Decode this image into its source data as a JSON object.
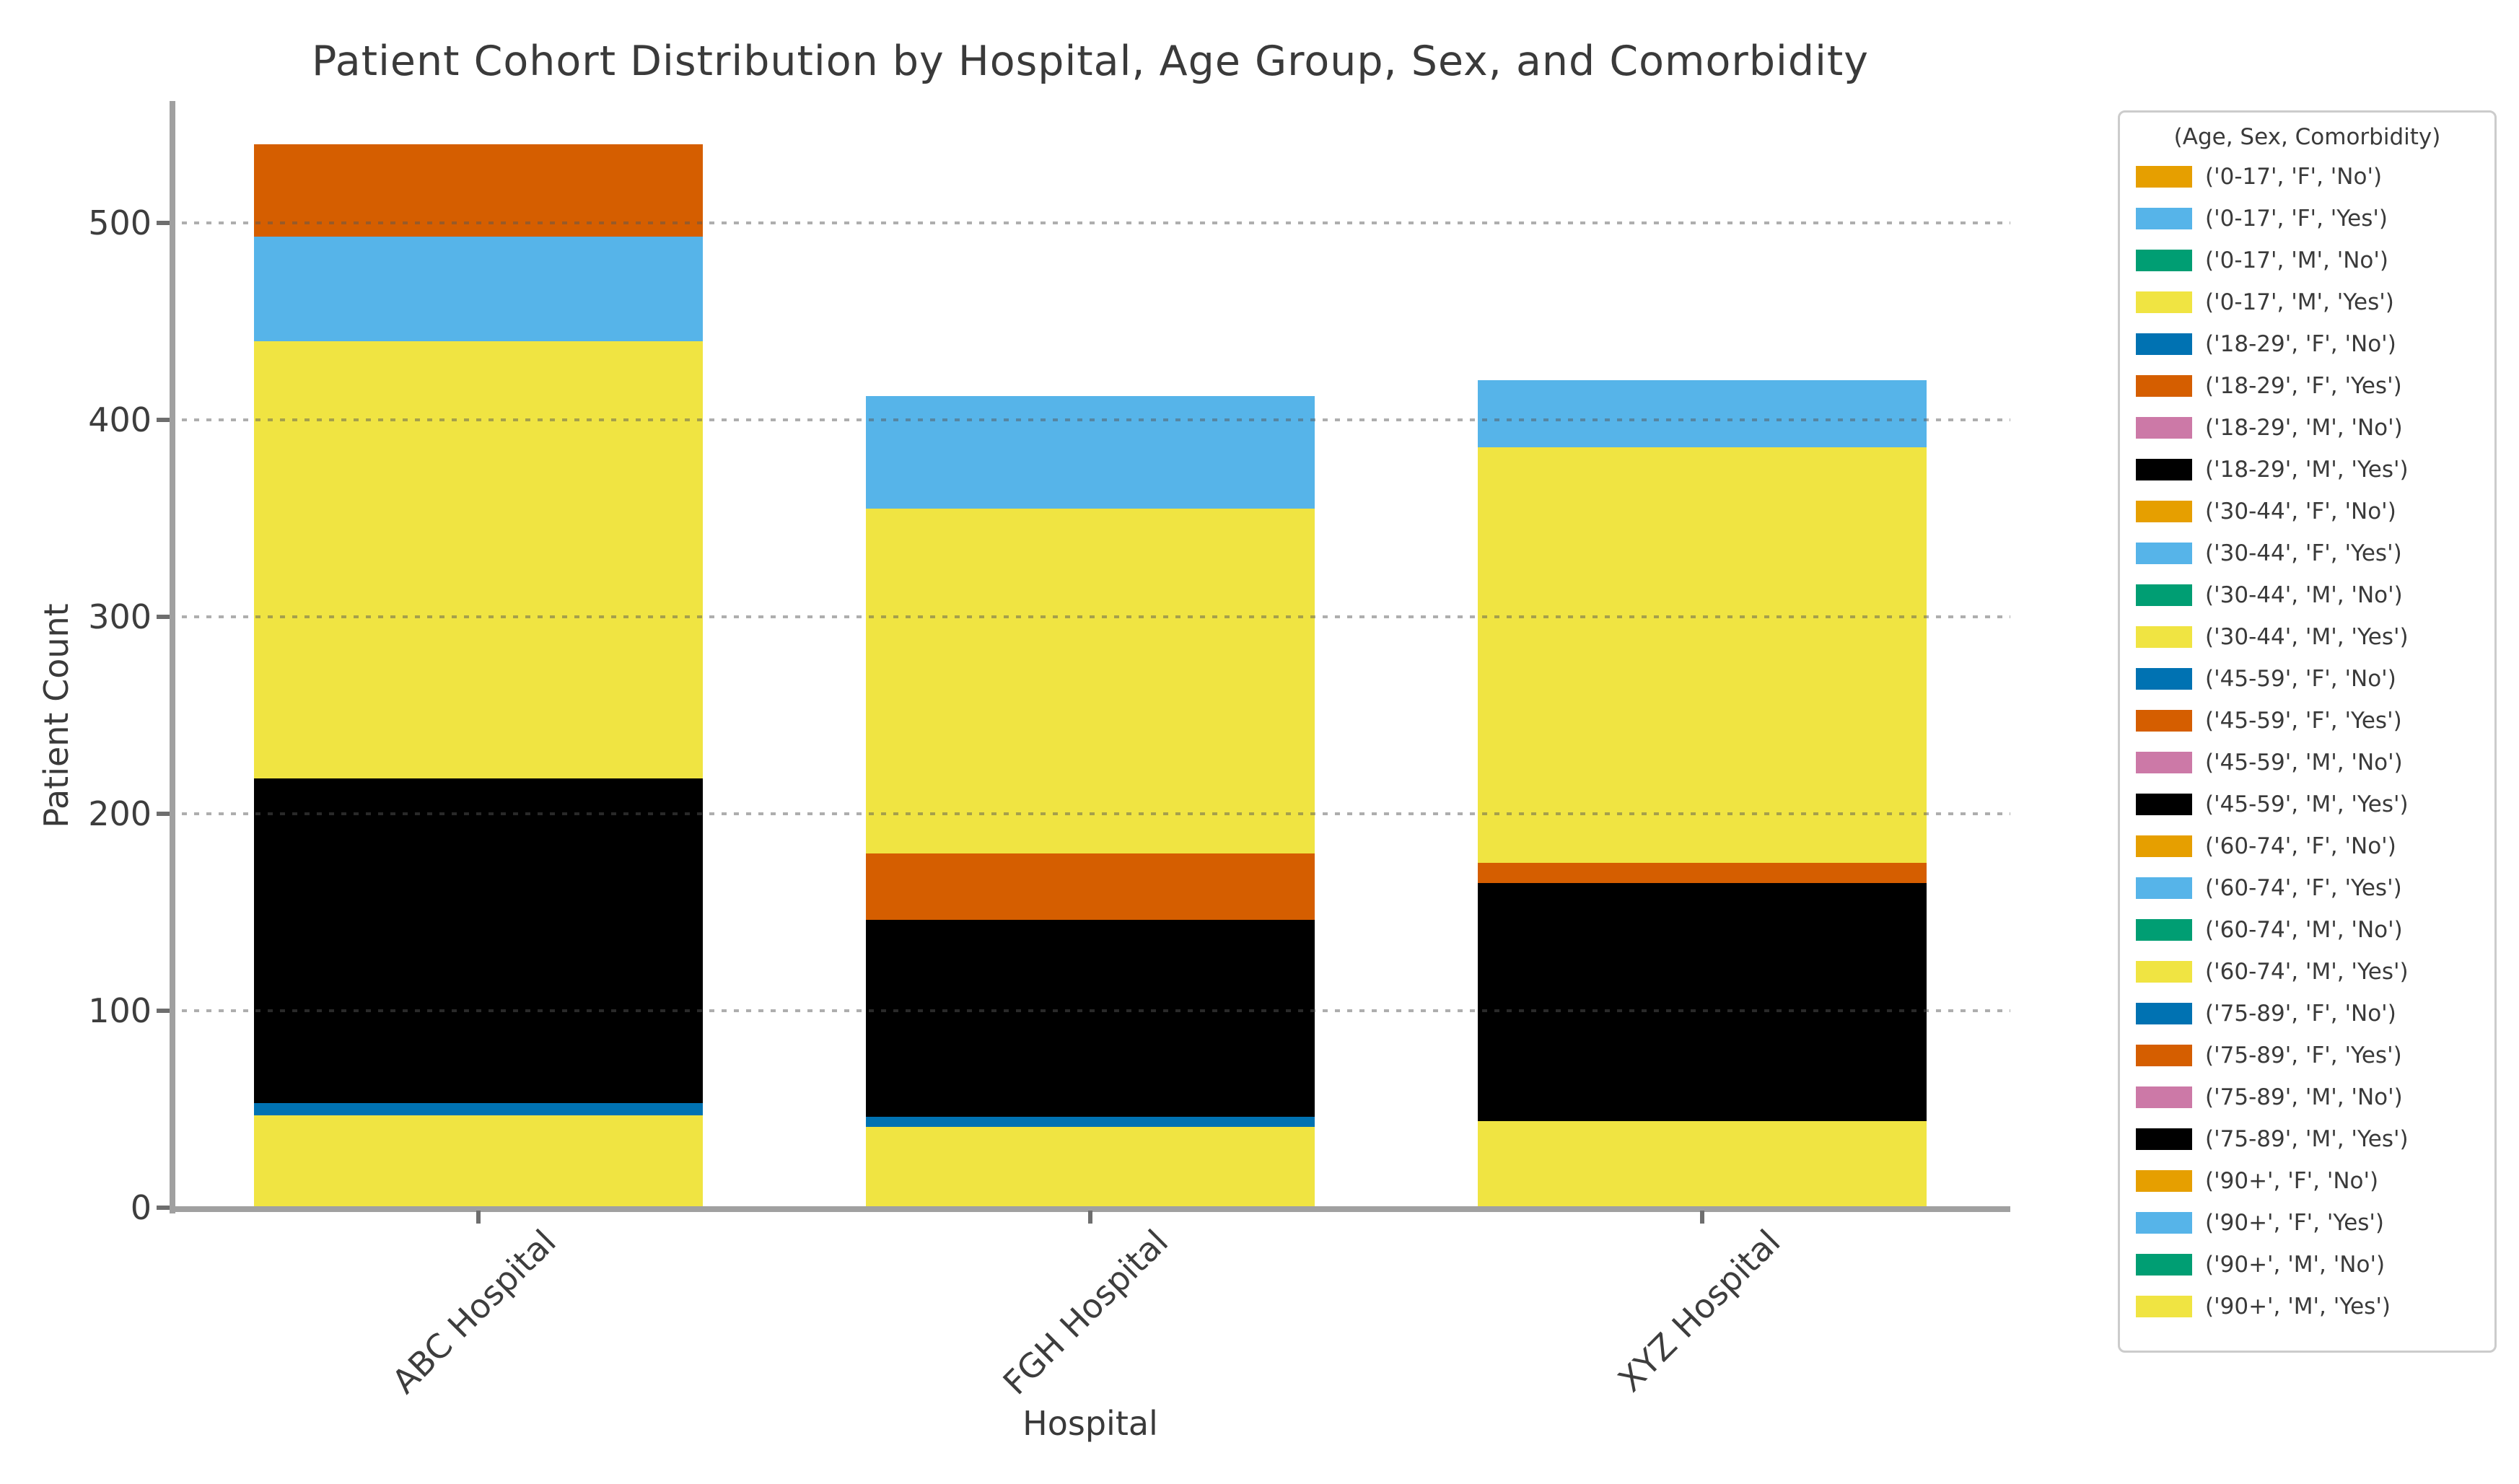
{
  "title": "Patient Cohort Distribution by Hospital, Age Group, Sex, and Comorbidity",
  "axes": {
    "x_label": "Hospital",
    "y_label": "Patient Count",
    "y_ticks": [
      0,
      100,
      200,
      300,
      400,
      500
    ],
    "x_tick_labels": [
      "ABC Hospital",
      "FGH Hospital",
      "XYZ Hospital"
    ]
  },
  "palette": {
    "gold": "#E69F00",
    "sky_blue": "#56B4E9",
    "green": "#009E73",
    "yellow": "#F0E442",
    "blue": "#0072B2",
    "vermillion": "#D55E00",
    "pink": "#CC79A7",
    "black": "#000000"
  },
  "legend": {
    "title": "(Age, Sex, Comorbidity)",
    "entries": [
      {
        "label": "('0-17', 'F', 'No')",
        "color": "gold"
      },
      {
        "label": "('0-17', 'F', 'Yes')",
        "color": "sky_blue"
      },
      {
        "label": "('0-17', 'M', 'No')",
        "color": "green"
      },
      {
        "label": "('0-17', 'M', 'Yes')",
        "color": "yellow"
      },
      {
        "label": "('18-29', 'F', 'No')",
        "color": "blue"
      },
      {
        "label": "('18-29', 'F', 'Yes')",
        "color": "vermillion"
      },
      {
        "label": "('18-29', 'M', 'No')",
        "color": "pink"
      },
      {
        "label": "('18-29', 'M', 'Yes')",
        "color": "black"
      },
      {
        "label": "('30-44', 'F', 'No')",
        "color": "gold"
      },
      {
        "label": "('30-44', 'F', 'Yes')",
        "color": "sky_blue"
      },
      {
        "label": "('30-44', 'M', 'No')",
        "color": "green"
      },
      {
        "label": "('30-44', 'M', 'Yes')",
        "color": "yellow"
      },
      {
        "label": "('45-59', 'F', 'No')",
        "color": "blue"
      },
      {
        "label": "('45-59', 'F', 'Yes')",
        "color": "vermillion"
      },
      {
        "label": "('45-59', 'M', 'No')",
        "color": "pink"
      },
      {
        "label": "('45-59', 'M', 'Yes')",
        "color": "black"
      },
      {
        "label": "('60-74', 'F', 'No')",
        "color": "gold"
      },
      {
        "label": "('60-74', 'F', 'Yes')",
        "color": "sky_blue"
      },
      {
        "label": "('60-74', 'M', 'No')",
        "color": "green"
      },
      {
        "label": "('60-74', 'M', 'Yes')",
        "color": "yellow"
      },
      {
        "label": "('75-89', 'F', 'No')",
        "color": "blue"
      },
      {
        "label": "('75-89', 'F', 'Yes')",
        "color": "vermillion"
      },
      {
        "label": "('75-89', 'M', 'No')",
        "color": "pink"
      },
      {
        "label": "('75-89', 'M', 'Yes')",
        "color": "black"
      },
      {
        "label": "('90+', 'F', 'No')",
        "color": "gold"
      },
      {
        "label": "('90+', 'F', 'Yes')",
        "color": "sky_blue"
      },
      {
        "label": "('90+', 'M', 'No')",
        "color": "green"
      },
      {
        "label": "('90+', 'M', 'Yes')",
        "color": "yellow"
      }
    ]
  },
  "chart_data": {
    "type": "bar",
    "stacked": true,
    "stack_order": "bottom_to_top",
    "title": "Patient Cohort Distribution by Hospital, Age Group, Sex, and Comorbidity",
    "xlabel": "Hospital",
    "ylabel": "Patient Count",
    "ylim": [
      0,
      562
    ],
    "grid": "horizontal, dotted, drawn over bars",
    "legend_position": "outside upper right",
    "categories": [
      "ABC Hospital",
      "FGH Hospital",
      "XYZ Hospital"
    ],
    "bars": [
      {
        "hospital": "ABC Hospital",
        "total": 540,
        "segments": [
          {
            "group": "('0-17', 'M', 'Yes')",
            "color": "yellow",
            "value": 47
          },
          {
            "group": "('18-29', 'F', 'No')",
            "color": "blue",
            "value": 6
          },
          {
            "group": "('18-29', 'M', 'Yes')",
            "color": "black",
            "value": 165
          },
          {
            "group": "('30-44', 'M', 'Yes')",
            "color": "yellow",
            "value": 222
          },
          {
            "group": "('60-74', 'F', 'Yes')",
            "color": "sky_blue",
            "value": 53
          },
          {
            "group": "('75-89', 'F', 'Yes')",
            "color": "vermillion",
            "value": 47
          }
        ]
      },
      {
        "hospital": "FGH Hospital",
        "total": 412,
        "segments": [
          {
            "group": "('0-17', 'M', 'Yes')",
            "color": "yellow",
            "value": 41
          },
          {
            "group": "('18-29', 'F', 'No')",
            "color": "blue",
            "value": 5
          },
          {
            "group": "('18-29', 'M', 'Yes')",
            "color": "black",
            "value": 100
          },
          {
            "group": "('45-59', 'F', 'Yes')",
            "color": "vermillion",
            "value": 34
          },
          {
            "group": "('60-74', 'M', 'Yes')",
            "color": "yellow",
            "value": 175
          },
          {
            "group": "('90+', 'F', 'Yes')",
            "color": "sky_blue",
            "value": 57
          }
        ]
      },
      {
        "hospital": "XYZ Hospital",
        "total": 420,
        "segments": [
          {
            "group": "('0-17', 'M', 'Yes')",
            "color": "yellow",
            "value": 44
          },
          {
            "group": "('18-29', 'M', 'Yes')",
            "color": "black",
            "value": 121
          },
          {
            "group": "('45-59', 'F', 'Yes')",
            "color": "vermillion",
            "value": 10
          },
          {
            "group": "('60-74', 'M', 'Yes')",
            "color": "yellow",
            "value": 211
          },
          {
            "group": "('90+', 'F', 'Yes')",
            "color": "sky_blue",
            "value": 34
          }
        ]
      }
    ]
  }
}
